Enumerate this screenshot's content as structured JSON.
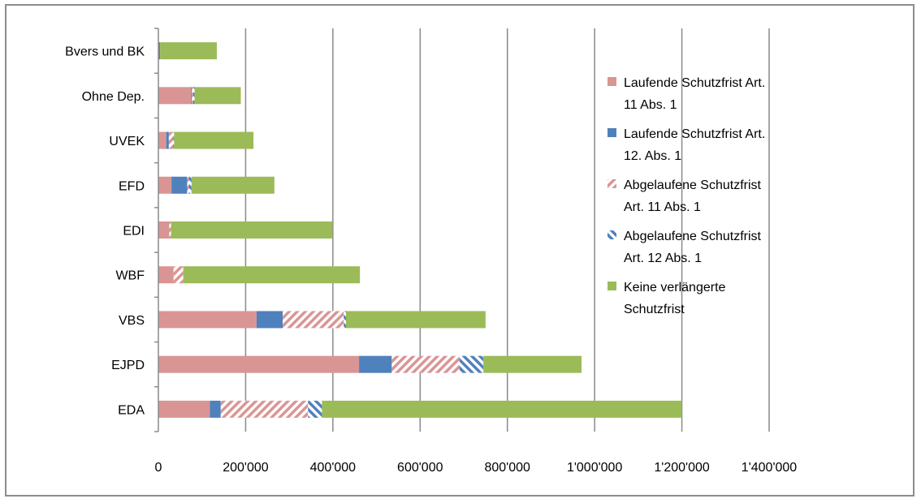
{
  "chart_data": {
    "type": "bar",
    "orientation": "horizontal",
    "stacked": true,
    "categories": [
      "Bvers und BK",
      "Ohne Dep.",
      "UVEK",
      "EFD",
      "EDI",
      "WBF",
      "VBS",
      "EJPD",
      "EDA"
    ],
    "series": [
      {
        "name": "Laufende Schutzfrist Art. 11 Abs. 1",
        "pattern": "solid",
        "color": "#d99594",
        "values": [
          0,
          75000,
          18000,
          30000,
          25000,
          35000,
          225000,
          460000,
          118000
        ]
      },
      {
        "name": "Laufende Schutzfrist Art. 12. Abs. 1",
        "pattern": "solid",
        "color": "#4f81bd",
        "values": [
          4000,
          2000,
          6000,
          36000,
          0,
          0,
          60000,
          75000,
          25000
        ]
      },
      {
        "name": "Abgelaufene Schutzfrist Art. 11 Abs. 1",
        "pattern": "hatch",
        "color": "#d99594",
        "values": [
          0,
          3000,
          10000,
          4000,
          4000,
          22000,
          140000,
          155000,
          200000
        ]
      },
      {
        "name": "Abgelaufene Schutzfrist Art. 12 Abs. 1",
        "pattern": "hatch",
        "color": "#4f81bd",
        "values": [
          0,
          3000,
          2000,
          6000,
          0,
          0,
          5000,
          55000,
          32000
        ]
      },
      {
        "name": "Keine verlängerte Schutzfrist",
        "pattern": "solid",
        "color": "#9bbb59",
        "values": [
          130000,
          106000,
          182000,
          190000,
          370000,
          405000,
          320000,
          225000,
          825000
        ]
      }
    ],
    "legend_lines": [
      [
        "Laufende Schutzfrist Art.",
        "11 Abs. 1"
      ],
      [
        "Laufende Schutzfrist Art.",
        "12. Abs. 1"
      ],
      [
        "Abgelaufene Schutzfrist",
        "Art. 11 Abs. 1"
      ],
      [
        "Abgelaufene Schutzfrist",
        "Art. 12 Abs. 1"
      ],
      [
        "Keine verlängerte",
        "Schutzfrist"
      ]
    ],
    "xlim": [
      0,
      1400000
    ],
    "xticks": [
      0,
      200000,
      400000,
      600000,
      800000,
      1000000,
      1200000,
      1400000
    ],
    "xtick_labels": [
      "0",
      "200'000",
      "400'000",
      "600'000",
      "800'000",
      "1'000'000",
      "1'200'000",
      "1'400'000"
    ],
    "grid": "vertical",
    "legend_position": "right"
  }
}
